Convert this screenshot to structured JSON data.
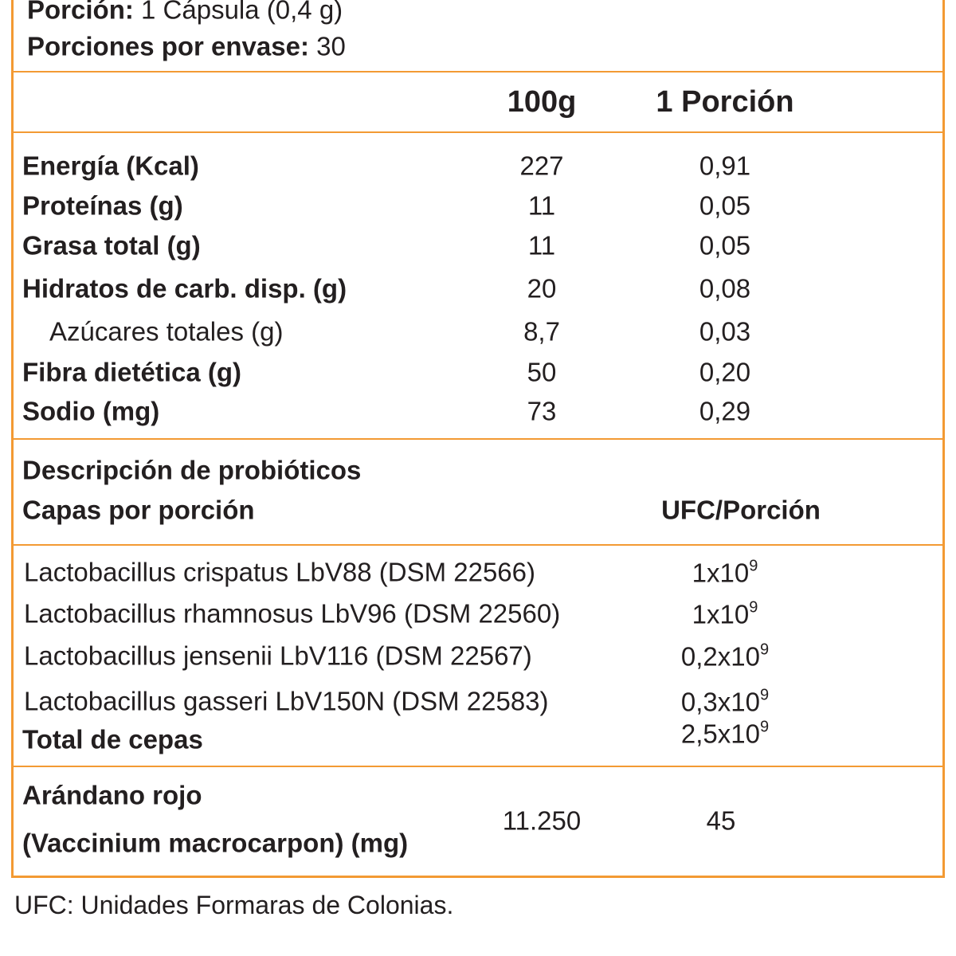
{
  "serving": {
    "label": "Porción:",
    "value": "1 Cápsula (0,4 g)"
  },
  "servings_per_container": {
    "label": "Porciones por envase:",
    "value": "30"
  },
  "nutrition": {
    "headers": [
      "100g",
      "1 Porción"
    ],
    "rows": [
      {
        "name": "Energía (Kcal)",
        "per_100g": "227",
        "per_serving": "0,91"
      },
      {
        "name": "Proteínas (g)",
        "per_100g": "11",
        "per_serving": "0,05"
      },
      {
        "name": "Grasa total (g)",
        "per_100g": "11",
        "per_serving": "0,05"
      },
      {
        "name": "Hidratos de carb. disp. (g)",
        "per_100g": "20",
        "per_serving": "0,08"
      },
      {
        "name": "Azúcares totales (g)",
        "per_100g": "8,7",
        "per_serving": "0,03"
      },
      {
        "name": "Fibra dietética (g)",
        "per_100g": "50",
        "per_serving": "0,20"
      },
      {
        "name": "Sodio (mg)",
        "per_100g": "73",
        "per_serving": "0,29"
      }
    ]
  },
  "probiotics": {
    "title": "Descripción de probióticos",
    "column_name": "Capas por porción",
    "column_value": "UFC/Porción",
    "rows": [
      {
        "name": "Lactobacillus crispatus LbV88 (DSM 22566)",
        "ufc": {
          "base": "1x10",
          "exp": "9"
        }
      },
      {
        "name": "Lactobacillus rhamnosus LbV96 (DSM 22560)",
        "ufc": {
          "base": "1x10",
          "exp": "9"
        }
      },
      {
        "name": "Lactobacillus jensenii LbV116 (DSM 22567)",
        "ufc": {
          "base": "0,2x10",
          "exp": "9"
        }
      },
      {
        "name": "Lactobacillus gasseri LbV150N (DSM 22583)",
        "ufc": {
          "base": "0,3x10",
          "exp": "9"
        }
      },
      {
        "name": "Total de cepas",
        "ufc": {
          "base": "2,5x10",
          "exp": "9"
        }
      }
    ]
  },
  "cranberry": {
    "name": [
      "Arándano rojo",
      "(Vaccinium macrocarpon) (mg)"
    ],
    "per_100g": "11.250",
    "per_serving": "45"
  },
  "footnote": "UFC: Unidades Formaras de Colonias."
}
